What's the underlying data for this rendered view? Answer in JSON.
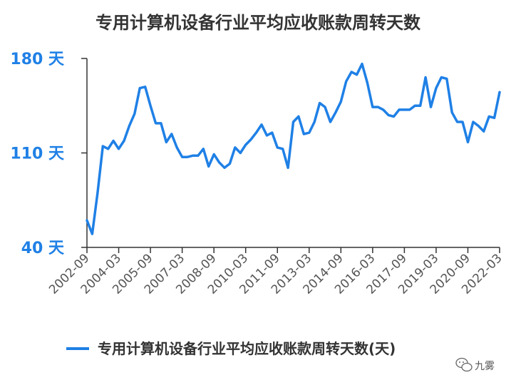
{
  "chart_data": {
    "type": "line",
    "title": "专用计算机设备行业平均应收账款周转天数",
    "xlabel": "",
    "ylabel": "",
    "ylim": [
      40,
      180
    ],
    "y_ticks": [
      "180 天",
      "110 天",
      "40 天"
    ],
    "y_tick_values": [
      180,
      110,
      40
    ],
    "x_ticks": [
      "2002-09",
      "2004-03",
      "2005-09",
      "2007-03",
      "2008-09",
      "2010-03",
      "2011-09",
      "2013-03",
      "2014-09",
      "2016-03",
      "2017-09",
      "2019-03",
      "2020-09",
      "2022-03"
    ],
    "grid": false,
    "legend": "bottom",
    "color": "#1f80e6",
    "series": [
      {
        "name": "专用计算机设备行业平均应收账款周转天数(天)",
        "values": [
          60,
          50,
          80,
          115,
          113,
          119,
          113,
          119,
          130,
          139,
          158,
          159,
          145,
          132,
          132,
          118,
          124,
          114,
          107,
          107,
          108,
          108,
          113,
          100,
          109,
          103,
          99,
          102,
          114,
          110,
          116,
          120,
          125,
          131,
          123,
          125,
          114,
          113,
          99,
          133,
          137,
          124,
          125,
          133,
          147,
          144,
          133,
          140,
          148,
          163,
          170,
          168,
          176,
          162,
          144,
          144,
          142,
          138,
          137,
          142,
          142,
          142,
          145,
          145,
          166,
          144,
          158,
          166,
          165,
          140,
          133,
          133,
          118,
          133,
          130,
          126,
          137,
          136,
          155
        ]
      }
    ]
  },
  "watermark": {
    "icon": "wechat-icon",
    "text": "九雾"
  }
}
